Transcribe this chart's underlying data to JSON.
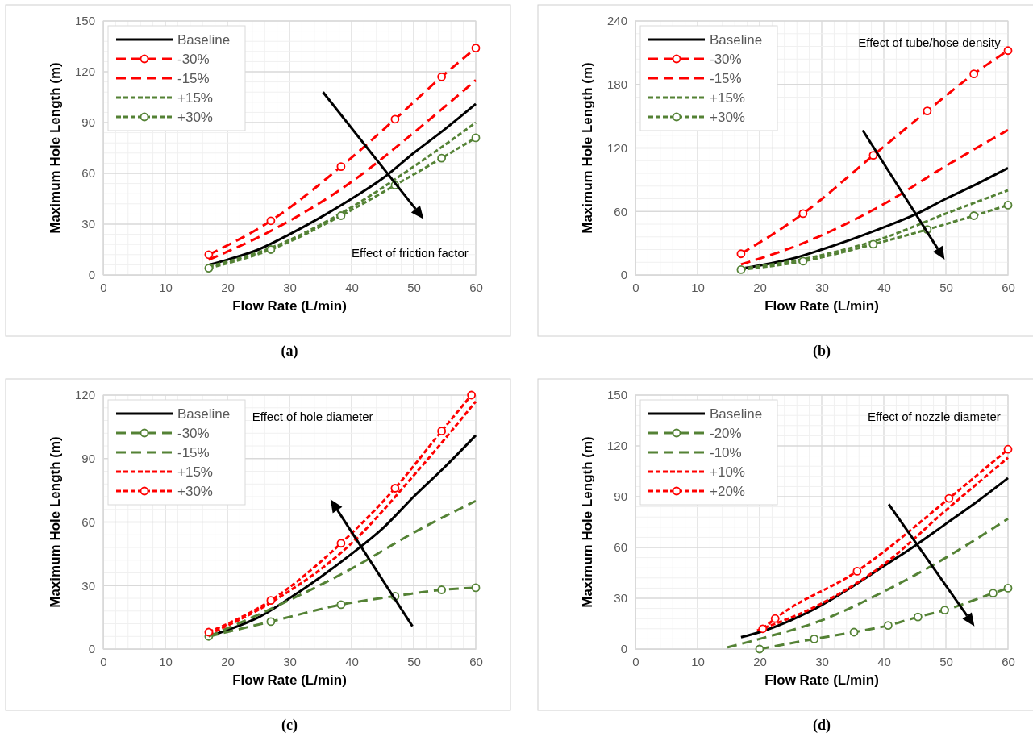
{
  "chart_data": [
    {
      "type": "line",
      "xlabel": "Flow Rate (L/min)",
      "ylabel": "Maximum Hole Length  (m)",
      "xlim": [
        0,
        60
      ],
      "xticks": [
        0,
        10,
        20,
        30,
        40,
        50,
        60
      ],
      "ylim": [
        0,
        150
      ],
      "yticks": [
        0,
        30,
        60,
        90,
        120,
        150
      ],
      "grid": true,
      "legend": "top left",
      "annotations": [
        "Effect of friction factor",
        "(a)"
      ],
      "series": [
        {
          "name": "Baseline",
          "color": "#000000",
          "line_style": "solid",
          "marker": "none",
          "x": [
            17,
            20,
            25,
            30,
            35,
            40,
            45,
            50,
            55,
            60
          ],
          "values": [
            6,
            9,
            15,
            24,
            34,
            45,
            57,
            72,
            86,
            101
          ]
        },
        {
          "name": "-30%",
          "color": "#ff0000",
          "line_style": "dashed",
          "marker": "circle",
          "x": [
            17,
            27,
            38.3,
            47,
            54.5,
            60
          ],
          "values": [
            12,
            32,
            64,
            92,
            117,
            134
          ]
        },
        {
          "name": "-15%",
          "color": "#ff0000",
          "line_style": "dashed",
          "marker": "none",
          "x": [
            17,
            27,
            40,
            50,
            60
          ],
          "values": [
            9,
            26,
            55,
            84,
            115
          ]
        },
        {
          "name": "+15%",
          "color": "#548235",
          "line_style": "dotted",
          "marker": "none",
          "x": [
            17,
            27,
            40,
            50,
            60
          ],
          "values": [
            5,
            16,
            40,
            64,
            90
          ]
        },
        {
          "name": "+30%",
          "color": "#548235",
          "line_style": "dotted",
          "marker": "circle",
          "x": [
            17,
            27,
            38.3,
            47,
            54.5,
            60
          ],
          "values": [
            4,
            15,
            35,
            53,
            69,
            81
          ]
        }
      ]
    },
    {
      "type": "line",
      "xlabel": "Flow Rate (L/min)",
      "ylabel": "Maximum Hole Length  (m)",
      "xlim": [
        0,
        60
      ],
      "xticks": [
        0,
        10,
        20,
        30,
        40,
        50,
        60
      ],
      "ylim": [
        0,
        240
      ],
      "yticks": [
        0,
        60,
        120,
        180,
        240
      ],
      "grid": true,
      "legend": "top left",
      "annotations": [
        "Effect of tube/hose density",
        "(b)"
      ],
      "series": [
        {
          "name": "Baseline",
          "color": "#000000",
          "line_style": "solid",
          "marker": "none",
          "x": [
            17,
            20,
            25,
            30,
            35,
            40,
            45,
            50,
            55,
            60
          ],
          "values": [
            6,
            9,
            15,
            24,
            34,
            45,
            57,
            72,
            86,
            101
          ]
        },
        {
          "name": "-30%",
          "color": "#ff0000",
          "line_style": "dashed",
          "marker": "circle",
          "x": [
            17,
            27,
            38.3,
            47,
            54.5,
            60
          ],
          "values": [
            20,
            58,
            113,
            155,
            190,
            212
          ]
        },
        {
          "name": "-15%",
          "color": "#ff0000",
          "line_style": "dashed",
          "marker": "none",
          "x": [
            17,
            27,
            40,
            50,
            60
          ],
          "values": [
            10,
            30,
            67,
            103,
            137
          ]
        },
        {
          "name": "+15%",
          "color": "#548235",
          "line_style": "dotted",
          "marker": "none",
          "x": [
            17,
            27,
            40,
            50,
            60
          ],
          "values": [
            6,
            15,
            35,
            58,
            80
          ]
        },
        {
          "name": "+30%",
          "color": "#548235",
          "line_style": "dotted",
          "marker": "circle",
          "x": [
            17,
            27,
            38.3,
            47,
            54.5,
            60
          ],
          "values": [
            5,
            13,
            29,
            43,
            56,
            66
          ]
        }
      ]
    },
    {
      "type": "line",
      "xlabel": "Flow Rate (L/min)",
      "ylabel": "Maximum Hole Length  (m)",
      "xlim": [
        0,
        60
      ],
      "xticks": [
        0,
        10,
        20,
        30,
        40,
        50,
        60
      ],
      "ylim": [
        0,
        120
      ],
      "yticks": [
        0,
        30,
        60,
        90,
        120
      ],
      "grid": true,
      "legend": "top left",
      "annotations": [
        "Effect of hole diameter",
        "(c)"
      ],
      "series": [
        {
          "name": "Baseline",
          "color": "#000000",
          "line_style": "solid",
          "marker": "none",
          "x": [
            17,
            20,
            25,
            30,
            35,
            40,
            45,
            50,
            55,
            60
          ],
          "values": [
            6,
            9,
            15,
            24,
            34,
            45,
            57,
            72,
            86,
            101
          ]
        },
        {
          "name": "-30%",
          "color": "#548235",
          "line_style": "dashed",
          "marker": "circle",
          "x": [
            17,
            27,
            38.3,
            47,
            54.5,
            60
          ],
          "values": [
            6,
            13,
            21,
            25,
            28,
            29
          ]
        },
        {
          "name": "-15%",
          "color": "#548235",
          "line_style": "dashed",
          "marker": "none",
          "x": [
            17,
            27,
            40,
            50,
            60
          ],
          "values": [
            6,
            19,
            38,
            55,
            70
          ]
        },
        {
          "name": "+15%",
          "color": "#ff0000",
          "line_style": "dotted",
          "marker": "none",
          "x": [
            17,
            27,
            40,
            50,
            60
          ],
          "values": [
            7,
            22,
            50,
            82,
            117
          ]
        },
        {
          "name": "+30%",
          "color": "#ff0000",
          "line_style": "dotted",
          "marker": "circle",
          "x": [
            17,
            27,
            38.3,
            47,
            54.5,
            59.3
          ],
          "values": [
            8,
            23,
            50,
            76,
            103,
            120
          ]
        }
      ]
    },
    {
      "type": "line",
      "xlabel": "Flow Rate (L/min)",
      "ylabel": "Maximum Hole Length  (m)",
      "xlim": [
        0,
        60
      ],
      "xticks": [
        0,
        10,
        20,
        30,
        40,
        50,
        60
      ],
      "ylim": [
        0,
        150
      ],
      "yticks": [
        0,
        30,
        60,
        90,
        120,
        150
      ],
      "grid": true,
      "legend": "top left",
      "annotations": [
        "Effect of nozzle  diameter",
        "(d)"
      ],
      "series": [
        {
          "name": "Baseline",
          "color": "#000000",
          "line_style": "solid",
          "marker": "none",
          "x": [
            17,
            20,
            25,
            30,
            35,
            40,
            45,
            50,
            55,
            60
          ],
          "values": [
            7,
            10,
            17,
            26,
            37,
            49,
            61,
            74,
            87,
            101
          ]
        },
        {
          "name": "-20%",
          "color": "#548235",
          "line_style": "dashed",
          "marker": "circle",
          "x": [
            20,
            28.8,
            35.2,
            40.7,
            45.5,
            49.8,
            57.6,
            60
          ],
          "values": [
            0,
            6,
            10,
            14,
            19,
            23,
            33,
            36
          ]
        },
        {
          "name": "-10%",
          "color": "#548235",
          "line_style": "dashed",
          "marker": "none",
          "x": [
            14.8,
            20,
            30,
            40,
            50,
            60
          ],
          "values": [
            1,
            6,
            17,
            34,
            54,
            77
          ]
        },
        {
          "name": "+10%",
          "color": "#ff0000",
          "line_style": "dotted",
          "marker": "none",
          "x": [
            19.6,
            30,
            40,
            50,
            60
          ],
          "values": [
            11,
            27,
            50,
            82,
            113
          ]
        },
        {
          "name": "+20%",
          "color": "#ff0000",
          "line_style": "dotted",
          "marker": "circle",
          "x": [
            20.5,
            22.5,
            35.7,
            50.5,
            60
          ],
          "values": [
            12,
            18,
            46,
            89,
            118
          ]
        }
      ]
    }
  ]
}
